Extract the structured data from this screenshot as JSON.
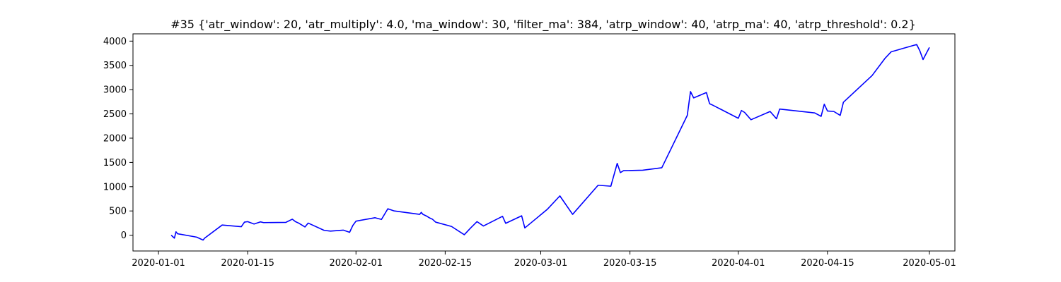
{
  "chart_data": {
    "type": "line",
    "title": "#35 {'atr_window': 20, 'atr_multiply': 4.0, 'ma_window': 30, 'filter_ma': 384, 'atrp_window': 40, 'atrp_ma': 40, 'atrp_threshold': 0.2}",
    "xlabel": "",
    "ylabel": "",
    "xlim": [
      "2019-12-28",
      "2020-05-05"
    ],
    "ylim": [
      -325,
      4150
    ],
    "grid": false,
    "line_color": "#0000ff",
    "x_ticks": [
      {
        "date": "2020-01-01",
        "label": "2020-01-01"
      },
      {
        "date": "2020-01-15",
        "label": "2020-01-15"
      },
      {
        "date": "2020-02-01",
        "label": "2020-02-01"
      },
      {
        "date": "2020-02-15",
        "label": "2020-02-15"
      },
      {
        "date": "2020-03-01",
        "label": "2020-03-01"
      },
      {
        "date": "2020-03-15",
        "label": "2020-03-15"
      },
      {
        "date": "2020-04-01",
        "label": "2020-04-01"
      },
      {
        "date": "2020-04-15",
        "label": "2020-04-15"
      },
      {
        "date": "2020-05-01",
        "label": "2020-05-01"
      }
    ],
    "y_ticks": [
      {
        "value": 0,
        "label": "0"
      },
      {
        "value": 500,
        "label": "500"
      },
      {
        "value": 1000,
        "label": "1000"
      },
      {
        "value": 1500,
        "label": "1500"
      },
      {
        "value": 2000,
        "label": "2000"
      },
      {
        "value": 2500,
        "label": "2500"
      },
      {
        "value": 3000,
        "label": "3000"
      },
      {
        "value": 3500,
        "label": "3500"
      },
      {
        "value": 4000,
        "label": "4000"
      }
    ],
    "series": [
      {
        "points": [
          [
            "2020-01-03",
            0
          ],
          [
            "2020-01-03T12:00",
            -60
          ],
          [
            "2020-01-03T18:00",
            70
          ],
          [
            "2020-01-04",
            30
          ],
          [
            "2020-01-07",
            -40
          ],
          [
            "2020-01-08",
            -100
          ],
          [
            "2020-01-08T06:00",
            -60
          ],
          [
            "2020-01-11",
            210
          ],
          [
            "2020-01-14",
            175
          ],
          [
            "2020-01-14T12:00",
            270
          ],
          [
            "2020-01-15",
            280
          ],
          [
            "2020-01-16",
            230
          ],
          [
            "2020-01-17",
            275
          ],
          [
            "2020-01-17T12:00",
            260
          ],
          [
            "2020-01-21",
            265
          ],
          [
            "2020-01-22",
            330
          ],
          [
            "2020-01-22T12:00",
            280
          ],
          [
            "2020-01-23",
            250
          ],
          [
            "2020-01-24",
            170
          ],
          [
            "2020-01-24T12:00",
            250
          ],
          [
            "2020-01-27",
            100
          ],
          [
            "2020-01-28",
            85
          ],
          [
            "2020-01-30",
            105
          ],
          [
            "2020-01-31",
            60
          ],
          [
            "2020-01-31T12:00",
            200
          ],
          [
            "2020-02-01",
            290
          ],
          [
            "2020-02-04",
            360
          ],
          [
            "2020-02-05",
            325
          ],
          [
            "2020-02-06",
            545
          ],
          [
            "2020-02-07",
            500
          ],
          [
            "2020-02-11",
            430
          ],
          [
            "2020-02-11T06:00",
            470
          ],
          [
            "2020-02-11T12:00",
            430
          ],
          [
            "2020-02-12",
            400
          ],
          [
            "2020-02-12T12:00",
            360
          ],
          [
            "2020-02-13",
            330
          ],
          [
            "2020-02-13T12:00",
            270
          ],
          [
            "2020-02-16",
            180
          ],
          [
            "2020-02-18",
            10
          ],
          [
            "2020-02-19",
            150
          ],
          [
            "2020-02-20",
            280
          ],
          [
            "2020-02-21",
            190
          ],
          [
            "2020-02-24",
            390
          ],
          [
            "2020-02-24T12:00",
            245
          ],
          [
            "2020-02-27",
            400
          ],
          [
            "2020-02-27T12:00",
            150
          ],
          [
            "2020-03-02",
            530
          ],
          [
            "2020-03-04",
            810
          ],
          [
            "2020-03-06",
            430
          ],
          [
            "2020-03-10",
            1030
          ],
          [
            "2020-03-12",
            1010
          ],
          [
            "2020-03-13",
            1480
          ],
          [
            "2020-03-13T12:00",
            1290
          ],
          [
            "2020-03-14",
            1330
          ],
          [
            "2020-03-17",
            1340
          ],
          [
            "2020-03-20",
            1390
          ],
          [
            "2020-03-24",
            2470
          ],
          [
            "2020-03-24T12:00",
            2960
          ],
          [
            "2020-03-25",
            2830
          ],
          [
            "2020-03-27",
            2940
          ],
          [
            "2020-03-27T12:00",
            2710
          ],
          [
            "2020-03-28",
            2680
          ],
          [
            "2020-04-01",
            2410
          ],
          [
            "2020-04-01T12:00",
            2570
          ],
          [
            "2020-04-02",
            2530
          ],
          [
            "2020-04-03",
            2380
          ],
          [
            "2020-04-06",
            2550
          ],
          [
            "2020-04-07",
            2400
          ],
          [
            "2020-04-07T12:00",
            2600
          ],
          [
            "2020-04-13",
            2520
          ],
          [
            "2020-04-14",
            2450
          ],
          [
            "2020-04-14T12:00",
            2700
          ],
          [
            "2020-04-15",
            2560
          ],
          [
            "2020-04-16",
            2550
          ],
          [
            "2020-04-17",
            2470
          ],
          [
            "2020-04-17T12:00",
            2740
          ],
          [
            "2020-04-22",
            3290
          ],
          [
            "2020-04-24",
            3640
          ],
          [
            "2020-04-25",
            3780
          ],
          [
            "2020-04-29",
            3930
          ],
          [
            "2020-04-29T12:00",
            3800
          ],
          [
            "2020-04-30",
            3620
          ],
          [
            "2020-05-01",
            3870
          ]
        ]
      }
    ]
  }
}
